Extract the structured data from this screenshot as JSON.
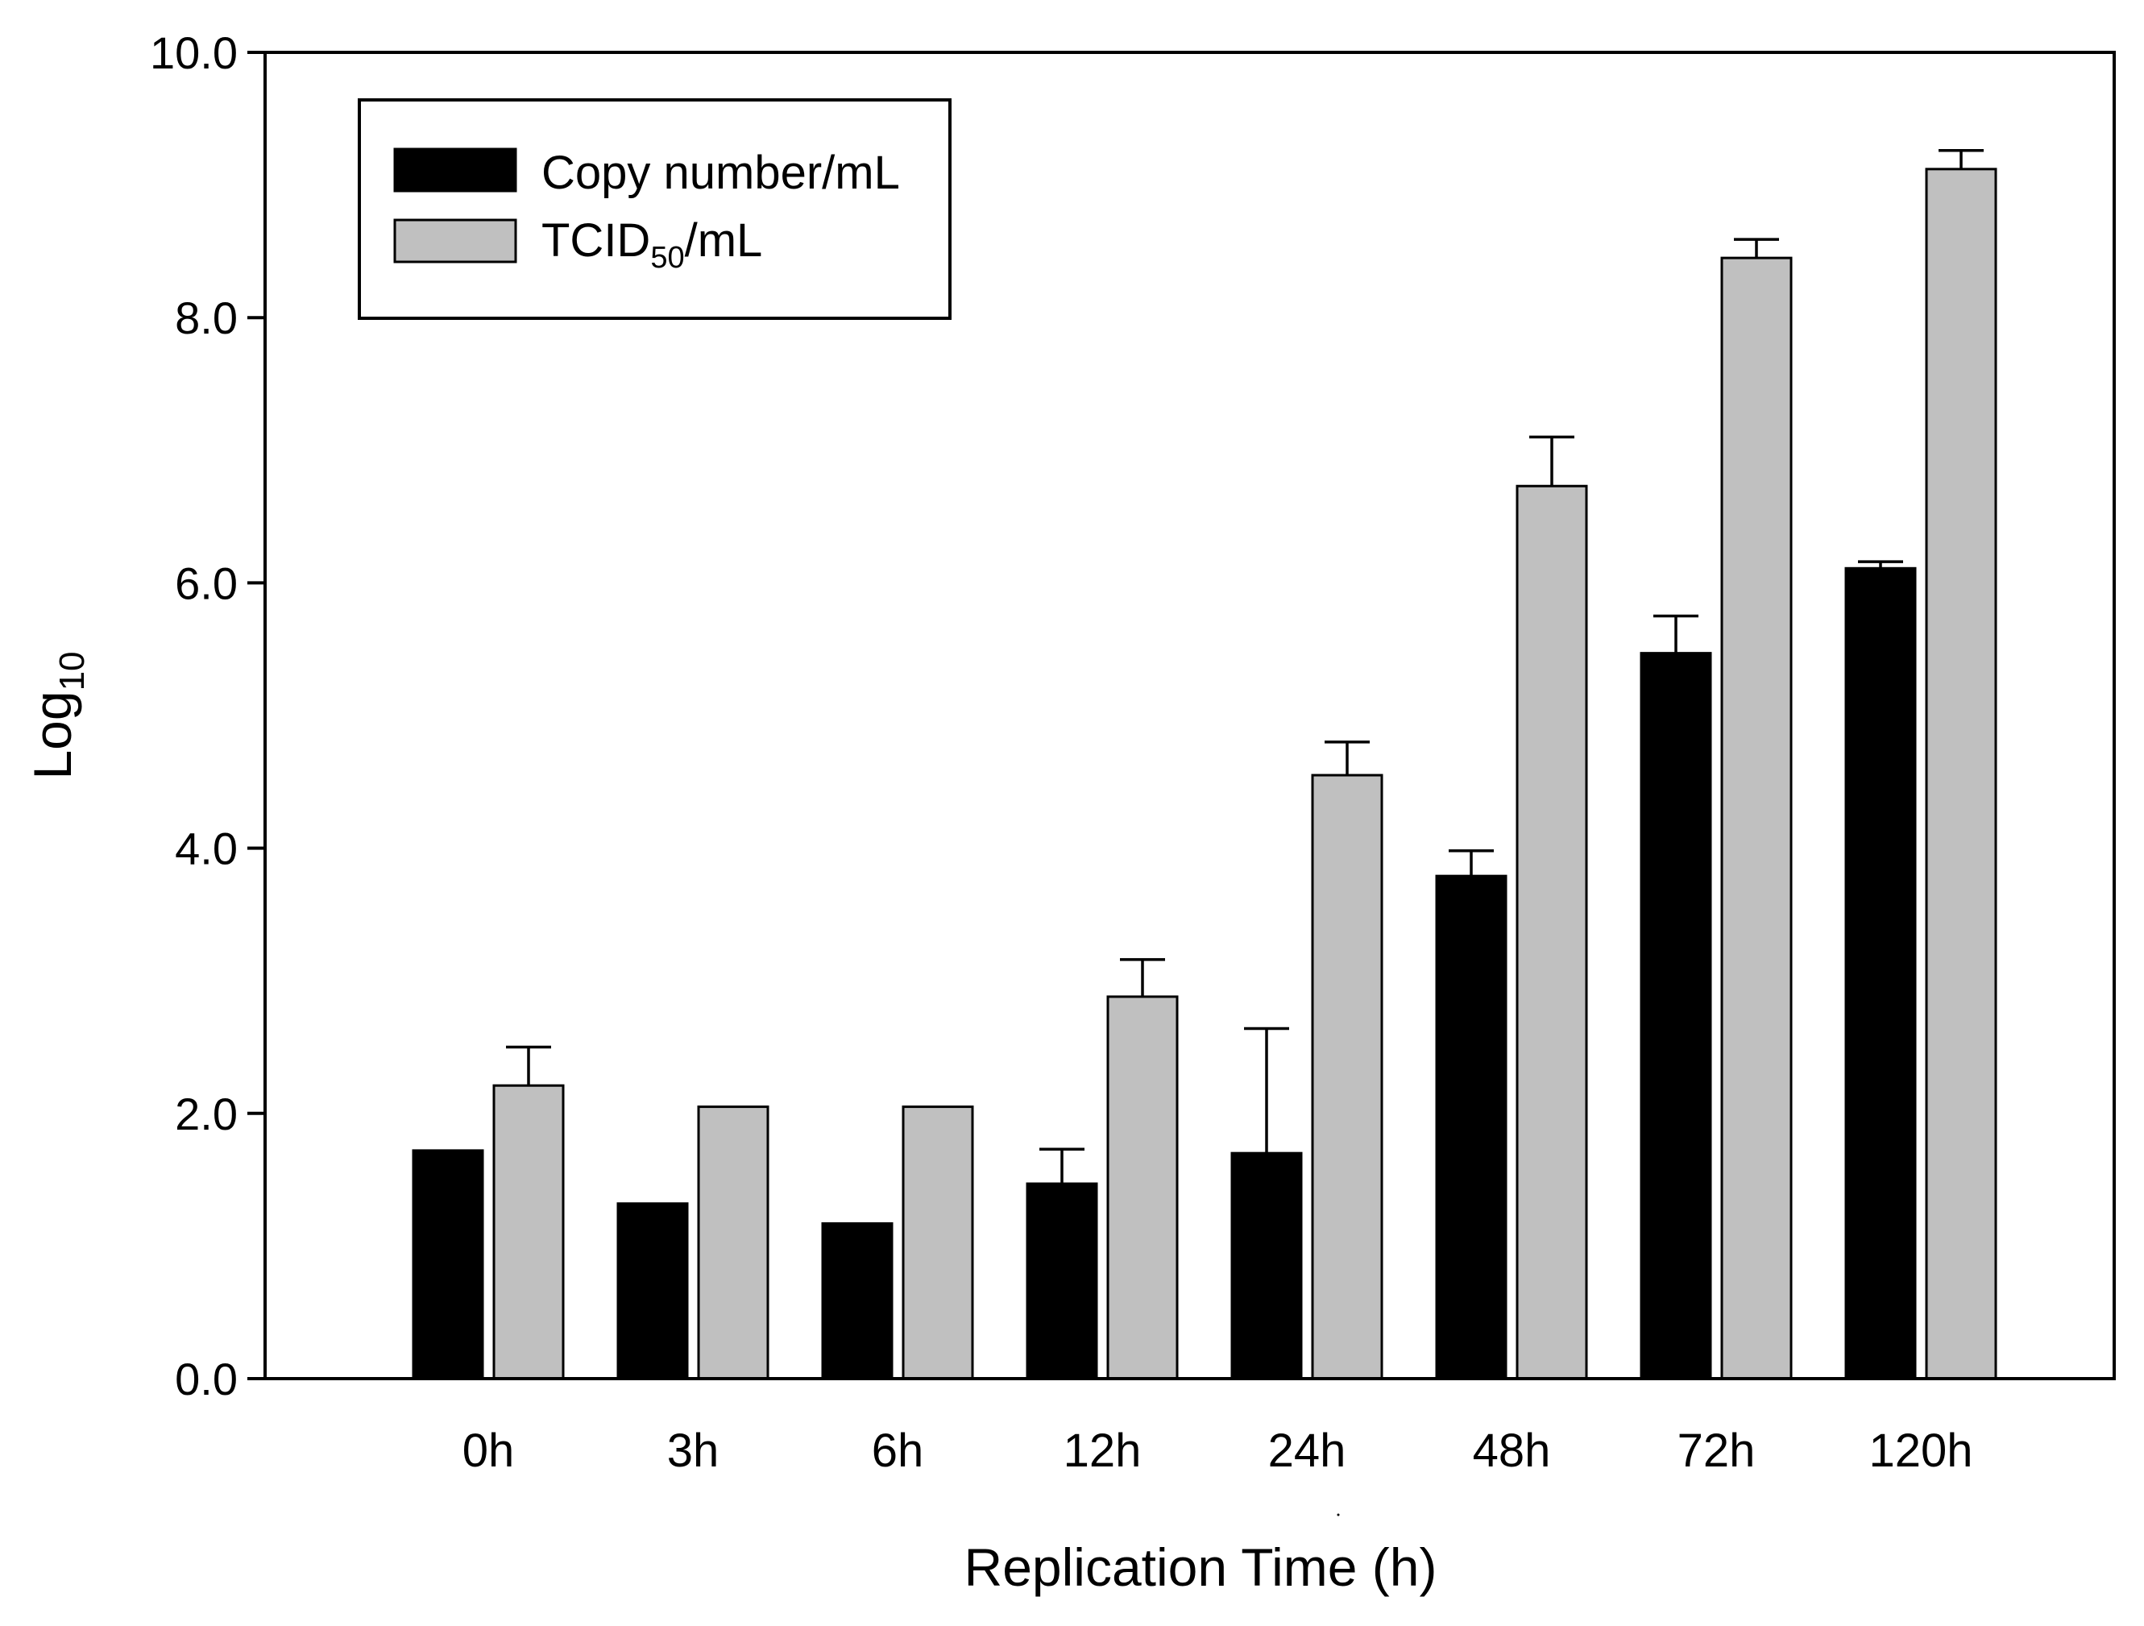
{
  "chart_data": {
    "type": "bar",
    "title": "",
    "xlabel": "Replication Time (h)",
    "ylabel": {
      "base": "Log",
      "sub": "10"
    },
    "ylim": [
      0,
      10
    ],
    "yticks": [
      "0.0",
      "2.0",
      "4.0",
      "6.0",
      "8.0",
      "10.0"
    ],
    "grid": false,
    "legend_position": "top-left",
    "categories": [
      "0h",
      "3h",
      "6h",
      "12h",
      "24h",
      "48h",
      "72h",
      "120h"
    ],
    "series": [
      {
        "name": "Copy number/mL",
        "legend_label": {
          "base": "Copy number/mL",
          "sub": "",
          "suffix": ""
        },
        "color": "#000000",
        "values": [
          1.72,
          1.32,
          1.17,
          1.47,
          1.7,
          3.79,
          5.47,
          6.11
        ],
        "errors": [
          0,
          0,
          0,
          0.26,
          0.94,
          0.19,
          0.28,
          0.05
        ]
      },
      {
        "name": "TCID50/mL",
        "legend_label": {
          "base": "TCID",
          "sub": "50",
          "suffix": "/mL"
        },
        "color": "#c0c0c0",
        "values": [
          2.21,
          2.05,
          2.05,
          2.88,
          4.55,
          6.73,
          8.45,
          9.12
        ],
        "errors": [
          0.29,
          0,
          0,
          0.28,
          0.25,
          0.37,
          0.14,
          0.14
        ]
      }
    ]
  }
}
